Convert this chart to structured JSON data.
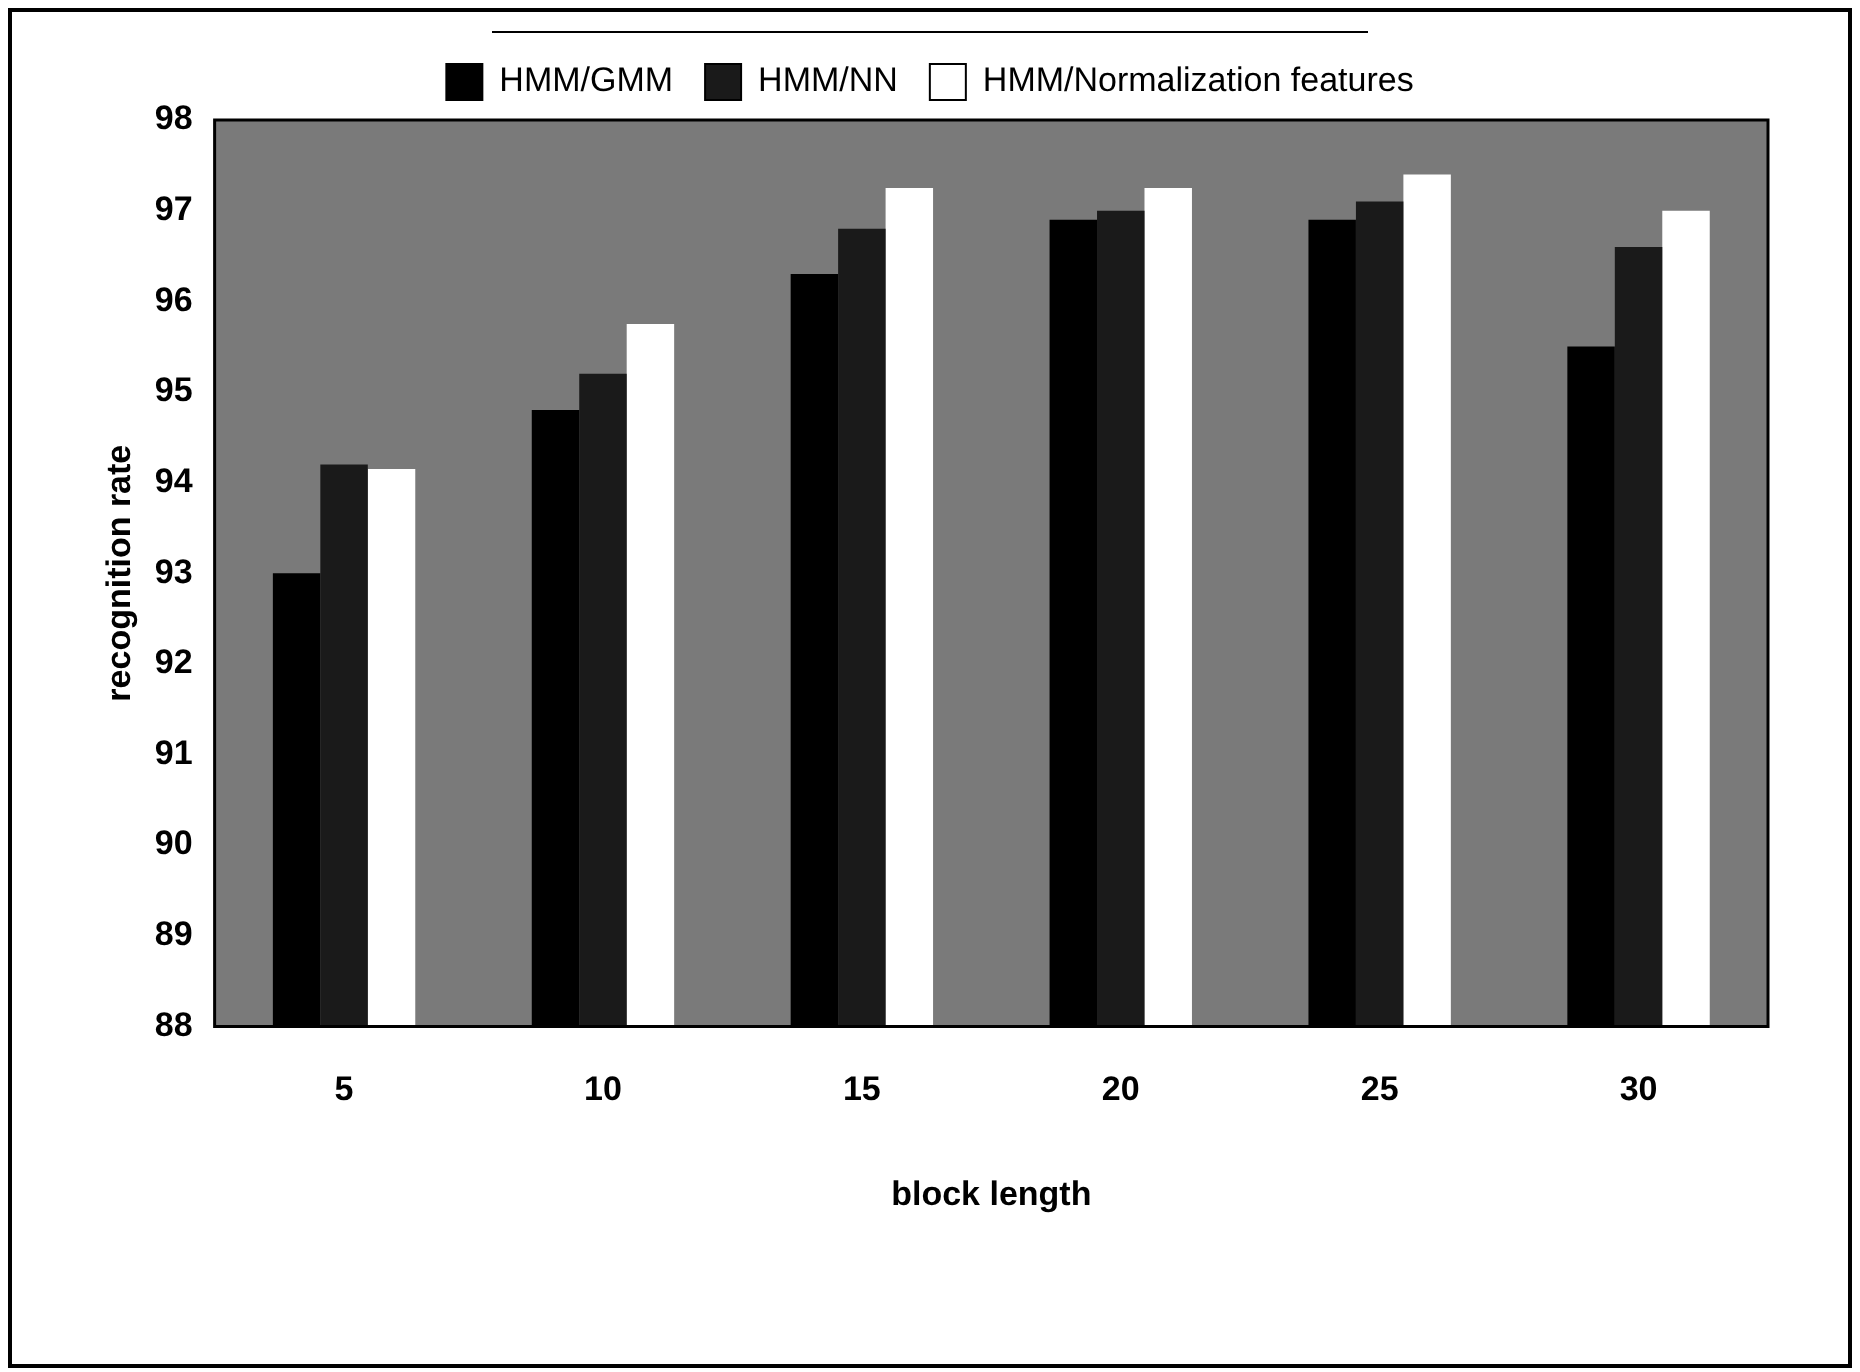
{
  "chart_data": {
    "type": "bar",
    "xlabel": "block length",
    "ylabel": "recognition rate",
    "categories": [
      "5",
      "10",
      "15",
      "20",
      "25",
      "30"
    ],
    "series": [
      {
        "name": "HMM/GMM",
        "color": "#000000",
        "values": [
          93.0,
          94.8,
          96.3,
          96.9,
          96.9,
          95.5
        ]
      },
      {
        "name": "HMM/NN",
        "color": "#1a1a1a",
        "values": [
          94.2,
          95.2,
          96.8,
          97.0,
          97.1,
          96.6
        ]
      },
      {
        "name": "HMM/Normalization features",
        "color": "#ffffff",
        "values": [
          94.15,
          95.75,
          97.25,
          97.25,
          97.4,
          97.0
        ]
      }
    ],
    "ylim": [
      88,
      98
    ],
    "yticks": [
      88,
      89,
      90,
      91,
      92,
      93,
      94,
      95,
      96,
      97,
      98
    ],
    "grid": false,
    "legend": "top"
  }
}
